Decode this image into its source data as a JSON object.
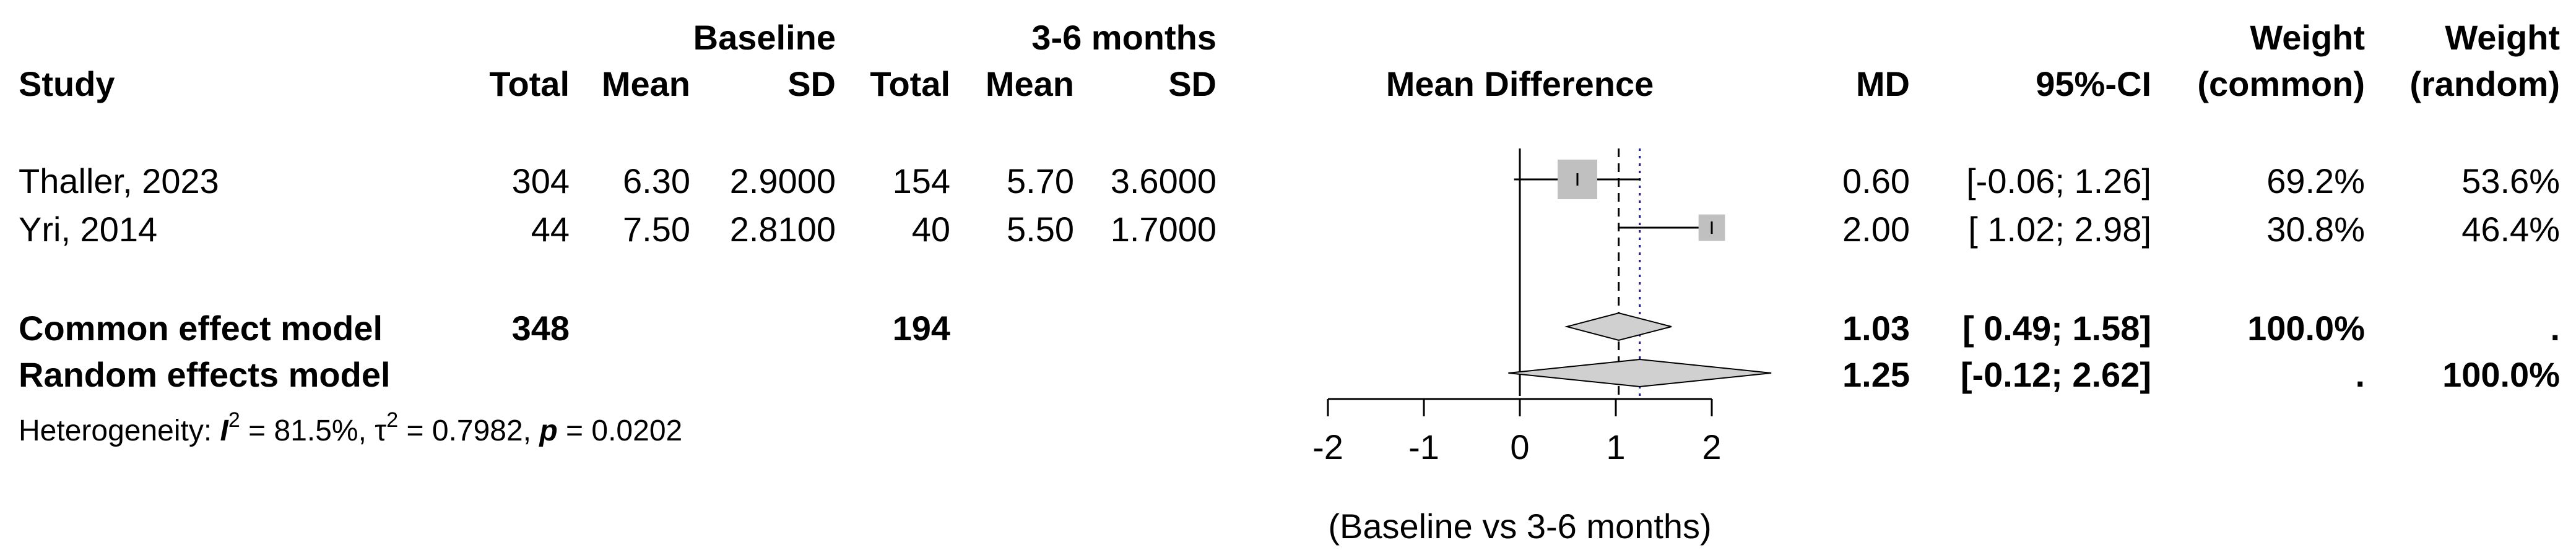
{
  "chart_data": {
    "type": "forest",
    "title": "",
    "xlabel": "Mean Difference",
    "axis_label": "(Baseline vs 3-6 months)",
    "xlim": [
      -2,
      2
    ],
    "ticks": [
      -2,
      -1,
      0,
      1,
      2
    ],
    "tick_labels": [
      "-2",
      "-1",
      "0",
      "1",
      "2"
    ],
    "group_headers": {
      "baseline": "Baseline",
      "followup": "3-6 months"
    },
    "columns": {
      "study": "Study",
      "total": "Total",
      "mean": "Mean",
      "sd": "SD",
      "effect": "Mean Difference",
      "md": "MD",
      "ci": "95%-CI",
      "weight": "Weight",
      "weight_common": "(common)",
      "weight_random": "(random)"
    },
    "studies": [
      {
        "study": "Thaller, 2023",
        "n1": "304",
        "mean1": "6.30",
        "sd1": "2.9000",
        "n2": "154",
        "mean2": "5.70",
        "sd2": "3.6000",
        "md": 0.6,
        "lower": -0.06,
        "upper": 1.26,
        "md_text": "0.60",
        "ci_text": "[-0.06; 1.26]",
        "w_common": 69.2,
        "w_random": 53.6,
        "w_common_text": "69.2%",
        "w_random_text": "53.6%"
      },
      {
        "study": "Yri, 2014",
        "n1": "44",
        "mean1": "7.50",
        "sd1": "2.8100",
        "n2": "40",
        "mean2": "5.50",
        "sd2": "1.7000",
        "md": 2.0,
        "lower": 1.02,
        "upper": 2.98,
        "md_text": "2.00",
        "ci_text": "[ 1.02; 2.98]",
        "w_common": 30.8,
        "w_random": 46.4,
        "w_common_text": "30.8%",
        "w_random_text": "46.4%"
      }
    ],
    "common": {
      "label": "Common effect model",
      "n1": "348",
      "n2": "194",
      "md": 1.03,
      "lower": 0.49,
      "upper": 1.58,
      "md_text": "1.03",
      "ci_text": "[ 0.49; 1.58]",
      "w_common_text": "100.0%",
      "w_random_text": "."
    },
    "random": {
      "label": "Random effects model",
      "md": 1.25,
      "lower": -0.12,
      "upper": 2.62,
      "md_text": "1.25",
      "ci_text": "[-0.12; 2.62]",
      "w_common_text": ".",
      "w_random_text": "100.0%"
    },
    "heterogeneity": {
      "prefix": "Heterogeneity: ",
      "i2_symbol": "I",
      "i2_value": " = 81.5%, ",
      "tau2_symbol": "τ",
      "tau2_value": " = 0.7982, ",
      "p_symbol": "p",
      "p_value": " = 0.0202",
      "superscript": "2"
    },
    "colors": {
      "square": "#c0c0c0",
      "diamond": "#d0d0d0",
      "line": "#000000",
      "random_line": "#1a1a8c"
    }
  }
}
